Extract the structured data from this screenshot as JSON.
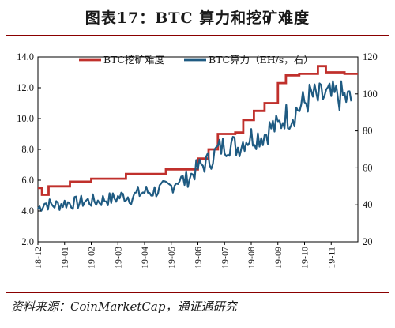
{
  "header": {
    "title": "图表17：BTC 算力和挖矿难度"
  },
  "footer": {
    "source": "资料来源：CoinMarketCap，通证通研究"
  },
  "colors": {
    "difficulty": "#c0302c",
    "hashrate": "#1f5b82",
    "rule": "#8a0000"
  },
  "chart_data": {
    "type": "line",
    "x_labels": [
      "18-12",
      "19-01",
      "19-02",
      "19-03",
      "19-04",
      "19-05",
      "19-06",
      "19-07",
      "19-08",
      "19-09",
      "19-10",
      "19-11"
    ],
    "y_left": {
      "ticks": [
        "2.0",
        "4.0",
        "6.0",
        "8.0",
        "10.0",
        "12.0",
        "14.0"
      ],
      "range": [
        2,
        14
      ]
    },
    "y_right": {
      "ticks": [
        "20",
        "40",
        "60",
        "80",
        "100",
        "120"
      ],
      "range": [
        20,
        120
      ]
    },
    "legend": {
      "placement": "top"
    },
    "series": [
      {
        "name": "BTC挖矿难度",
        "axis": "left",
        "style": "step",
        "x": [
          0,
          0.15,
          0.4,
          1.2,
          2.0,
          2.6,
          3.3,
          4.5,
          4.8,
          5.5,
          6.0,
          6.4,
          6.75,
          7.05,
          7.4,
          7.7,
          8.1,
          8.5,
          9.0,
          9.3,
          9.6,
          9.8,
          10.1,
          10.5,
          10.8,
          11.5,
          11.75
        ],
        "y": [
          5.5,
          5.05,
          5.6,
          5.9,
          6.1,
          6.1,
          6.4,
          6.4,
          6.7,
          6.7,
          7.4,
          8.0,
          9.0,
          9.0,
          9.1,
          9.9,
          10.5,
          11.0,
          12.3,
          12.8,
          12.8,
          12.9,
          12.9,
          13.4,
          13.0,
          12.9,
          12.9
        ]
      },
      {
        "name": "BTC算力（EH/s，右）",
        "axis": "right",
        "style": "line",
        "x": [
          0,
          0.25,
          0.5,
          0.75,
          1.0,
          1.25,
          1.5,
          1.75,
          2.0,
          2.25,
          2.5,
          2.75,
          3.0,
          3.25,
          3.5,
          3.75,
          4.0,
          4.25,
          4.5,
          4.75,
          5.0,
          5.25,
          5.5,
          5.75,
          6.0,
          6.25,
          6.5,
          6.75,
          7.0,
          7.25,
          7.5,
          7.75,
          8.0,
          8.25,
          8.5,
          8.75,
          9.0,
          9.25,
          9.5,
          9.75,
          10.0,
          10.25,
          10.5,
          10.75,
          11.0,
          11.25,
          11.5,
          11.75
        ],
        "y": [
          38,
          41,
          40,
          40,
          41,
          41,
          41,
          42,
          42,
          42,
          43,
          43,
          44,
          45,
          44,
          46,
          47,
          47,
          48,
          49,
          50,
          54,
          53,
          56,
          60,
          62,
          65,
          70,
          72,
          73,
          71,
          75,
          77,
          77,
          78,
          82,
          82,
          88,
          88,
          92,
          95,
          99,
          97,
          99,
          98,
          99,
          98,
          96
        ]
      }
    ]
  }
}
